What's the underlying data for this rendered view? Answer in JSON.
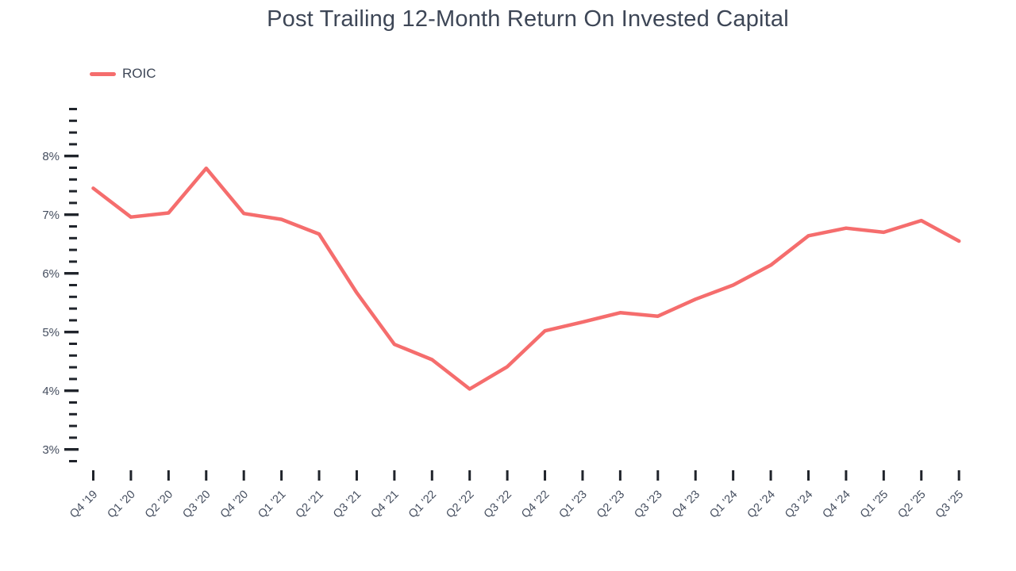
{
  "title": "Post Trailing 12-Month Return On Invested Capital",
  "colors": {
    "line": "#f56d6d",
    "title_text": "#3d4656",
    "axis_label_text": "#454e5f",
    "tick_mark": "#20242b",
    "background": "#ffffff"
  },
  "chart_data": {
    "type": "line",
    "title": "Post Trailing 12-Month Return On Invested Capital",
    "categories": [
      "Q4 '19",
      "Q1 '20",
      "Q2 '20",
      "Q3 '20",
      "Q4 '20",
      "Q1 '21",
      "Q2 '21",
      "Q3 '21",
      "Q4 '21",
      "Q1 '22",
      "Q2 '22",
      "Q3 '22",
      "Q4 '22",
      "Q1 '23",
      "Q2 '23",
      "Q3 '23",
      "Q4 '23",
      "Q1 '24",
      "Q2 '24",
      "Q3 '24",
      "Q4 '24",
      "Q1 '25",
      "Q2 '25",
      "Q3 '25"
    ],
    "series": [
      {
        "name": "ROIC",
        "color": "#f56d6d",
        "values": [
          7.45,
          6.96,
          7.03,
          7.79,
          7.02,
          6.92,
          6.67,
          5.67,
          4.79,
          4.53,
          4.03,
          4.41,
          5.02,
          5.17,
          5.33,
          5.27,
          5.56,
          5.8,
          6.14,
          6.64,
          6.77,
          6.7,
          6.9,
          6.55
        ]
      }
    ],
    "xlabel": "",
    "ylabel": "",
    "y_axis": {
      "unit": "%",
      "major_ticks": [
        3,
        4,
        5,
        6,
        7,
        8
      ],
      "tick_labels": [
        "3%",
        "4%",
        "5%",
        "6%",
        "7%",
        "8%"
      ],
      "minor_tick_step": 0.2,
      "range": [
        2.8,
        8.8
      ]
    },
    "grid": false,
    "legend_position": "top-left",
    "x_tick_label_rotation": -45
  }
}
